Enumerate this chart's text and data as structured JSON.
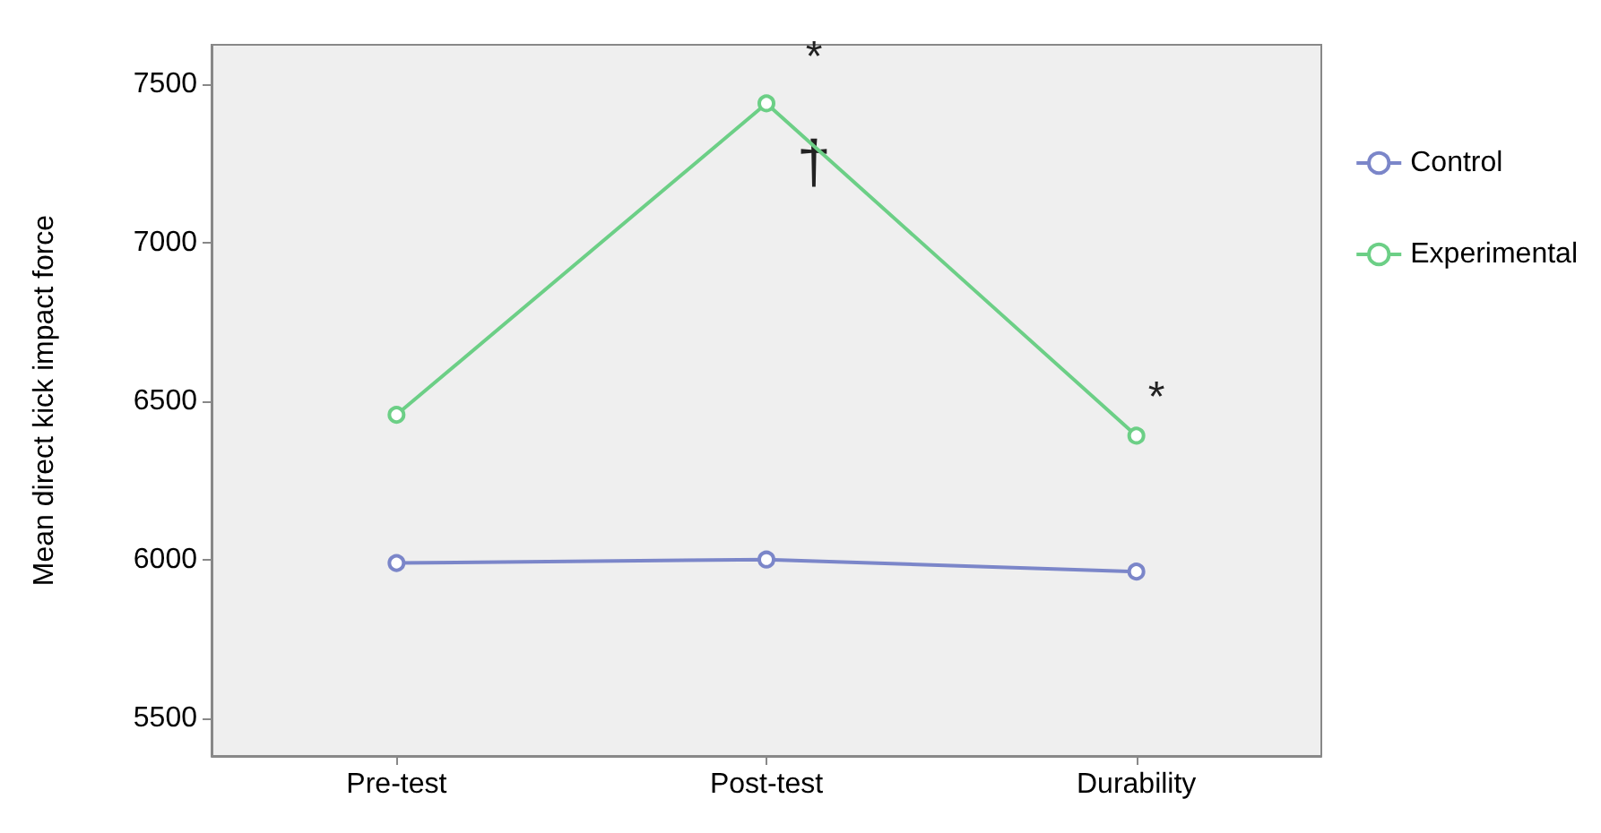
{
  "chart_data": {
    "type": "line",
    "ylabel": "Mean direct kick impact force",
    "categories": [
      "Pre-test",
      "Post-test",
      "Durability"
    ],
    "series": [
      {
        "name": "Control",
        "color": "#7b86c9",
        "values": [
          5989,
          6000,
          5962
        ]
      },
      {
        "name": "Experimental",
        "color": "#6ccf86",
        "values": [
          6457,
          7440,
          6391
        ]
      }
    ],
    "ylim": [
      5380,
      7625
    ],
    "yticks": [
      5500,
      6000,
      6500,
      7000,
      7500
    ],
    "grid": false,
    "legend": "right",
    "marker": "circle",
    "line_style": "solid",
    "annotations": [
      "*",
      "†",
      "*"
    ]
  }
}
